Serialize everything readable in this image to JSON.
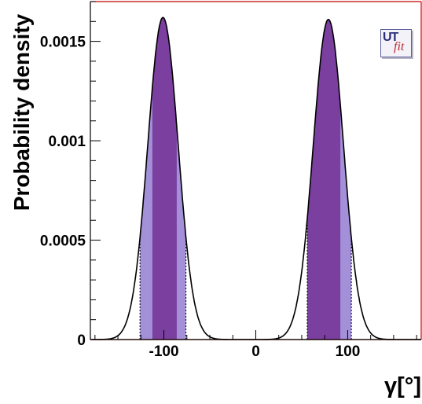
{
  "chart_data": {
    "type": "area",
    "xlabel": "γ[°]",
    "ylabel": "Probability density",
    "xlim": [
      -180,
      180
    ],
    "ylim": [
      0,
      0.0017
    ],
    "xticks": [
      -100,
      0,
      100
    ],
    "xtick_labels": [
      "-100",
      "0",
      "100"
    ],
    "yticks": [
      0,
      0.0005,
      0.001,
      0.0015
    ],
    "ytick_labels": [
      "0",
      "0.0005",
      "0.001",
      "0.0015"
    ],
    "grid": false,
    "legend": "none",
    "peaks": [
      {
        "mean": -101,
        "sigma": 16.5,
        "amplitude": 0.00162,
        "band_68": [
          -112.5,
          -86
        ],
        "band_95": [
          -126,
          -76
        ]
      },
      {
        "mean": 79,
        "sigma": 16.5,
        "amplitude": 0.00161,
        "band_68": [
          56,
          92
        ],
        "band_95": [
          56,
          104
        ]
      }
    ],
    "colors": {
      "curve": "#000000",
      "band_68": "#7b3fa0",
      "band_95": "#a390d8",
      "frame": "#c00000"
    }
  },
  "logo": {
    "ut": "UT",
    "fit": "fit"
  }
}
